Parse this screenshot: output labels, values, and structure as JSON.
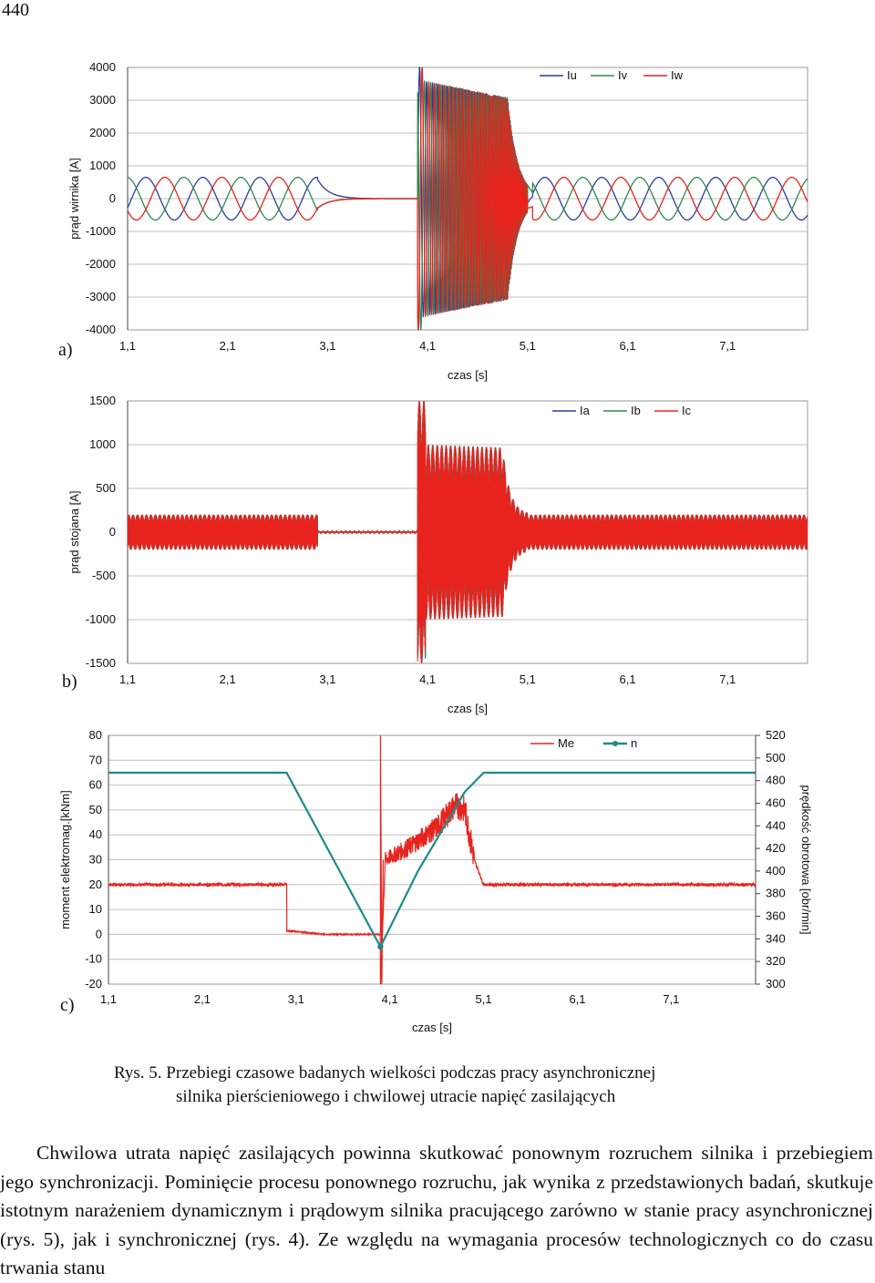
{
  "page_number": "440",
  "figure": {
    "caption_line1": "Rys. 5. Przebiegi czasowe badanych wielkości podczas pracy asynchronicznej",
    "caption_line2": "silnika pierścieniowego i chwilowej utracie napięć zasilających",
    "colors": {
      "blue": "#2b3f9e",
      "green": "#2f8a4f",
      "red": "#e8231e",
      "teal": "#1f8a8a",
      "grid": "#bfbfbf"
    }
  },
  "chart_data": [
    {
      "panel_label": "a)",
      "type": "line",
      "ylabel": "prąd wirnika [A]",
      "xlabel": "czas [s]",
      "xlim": [
        1.1,
        7.9
      ],
      "ylim": [
        -4000,
        4000
      ],
      "x_ticks": [
        "1,1",
        "2,1",
        "3,1",
        "4,1",
        "5,1",
        "6,1",
        "7,1"
      ],
      "y_ticks": [
        "4000",
        "3000",
        "2000",
        "1000",
        "0",
        "-1000",
        "-2000",
        "-3000",
        "-4000"
      ],
      "series": [
        {
          "name": "Iu",
          "color": "#2b3f9e",
          "phase_deg": 0
        },
        {
          "name": "Iv",
          "color": "#2f8a4f",
          "phase_deg": 120
        },
        {
          "name": "Iw",
          "color": "#e8231e",
          "phase_deg": 240
        }
      ],
      "segments": [
        {
          "t_start": 1.1,
          "t_end": 3.0,
          "description": "steady slip-frequency sinusoid",
          "amplitude": 650,
          "period_s": 0.57
        },
        {
          "t_start": 3.0,
          "t_end": 4.0,
          "description": "decay to zero after voltage loss",
          "amplitude_start": 650,
          "amplitude_end": 0
        },
        {
          "t_start": 4.0,
          "t_end": 5.1,
          "description": "reconnection transient, high frequency",
          "amplitude_peak": 4000,
          "amplitude_mid": 3500
        },
        {
          "t_start": 5.1,
          "t_end": 5.3,
          "description": "settling",
          "amplitude": 1000
        },
        {
          "t_start": 5.3,
          "t_end": 7.9,
          "description": "steady slip-frequency sinusoid",
          "amplitude": 650,
          "period_s": 0.57
        }
      ]
    },
    {
      "panel_label": "b)",
      "type": "line",
      "ylabel": "prąd stojana [A]",
      "xlabel": "czas [s]",
      "xlim": [
        1.1,
        7.9
      ],
      "ylim": [
        -1500,
        1500
      ],
      "x_ticks": [
        "1,1",
        "2,1",
        "3,1",
        "4,1",
        "5,1",
        "6,1",
        "7,1"
      ],
      "y_ticks": [
        "1500",
        "1000",
        "500",
        "0",
        "-500",
        "-1000",
        "-1500"
      ],
      "series": [
        {
          "name": "Ia",
          "color": "#2b3f9e"
        },
        {
          "name": "Ib",
          "color": "#2f8a4f"
        },
        {
          "name": "Ic",
          "color": "#e8231e"
        }
      ],
      "segments": [
        {
          "t_start": 1.1,
          "t_end": 3.0,
          "description": "50 Hz band",
          "amplitude": 200
        },
        {
          "t_start": 3.0,
          "t_end": 4.0,
          "description": "near zero",
          "amplitude": 5
        },
        {
          "t_start": 4.0,
          "t_end": 4.1,
          "description": "inrush spike",
          "amplitude": 1500
        },
        {
          "t_start": 4.1,
          "t_end": 4.85,
          "description": "high current band",
          "amplitude": 1000
        },
        {
          "t_start": 4.85,
          "t_end": 5.1,
          "description": "decay",
          "amplitude_start": 1000,
          "amplitude_end": 200
        },
        {
          "t_start": 5.1,
          "t_end": 7.9,
          "description": "50 Hz band",
          "amplitude": 200
        }
      ]
    },
    {
      "panel_label": "c)",
      "type": "line",
      "ylabel": "moment elektromag.[kNm]",
      "y2label": "prędkość obrotowa [obr/min]",
      "xlabel": "czas [s]",
      "xlim": [
        1.1,
        8.0
      ],
      "ylim": [
        -20,
        80
      ],
      "y2lim": [
        300,
        520
      ],
      "x_ticks": [
        "1,1",
        "2,1",
        "3,1",
        "4,1",
        "5,1",
        "6,1",
        "7,1"
      ],
      "y_ticks": [
        "80",
        "70",
        "60",
        "50",
        "40",
        "30",
        "20",
        "10",
        "0",
        "-10",
        "-20"
      ],
      "y2_ticks": [
        "520",
        "500",
        "480",
        "460",
        "440",
        "420",
        "400",
        "380",
        "360",
        "340",
        "320",
        "300"
      ],
      "series": [
        {
          "name": "Me",
          "color": "#e8231e",
          "axis": "left",
          "points": [
            [
              1.1,
              20
            ],
            [
              3.0,
              20
            ],
            [
              3.0,
              1.5
            ],
            [
              3.4,
              0
            ],
            [
              4.0,
              0
            ],
            [
              4.0,
              80
            ],
            [
              4.0,
              -20
            ],
            [
              4.05,
              30
            ],
            [
              4.3,
              35
            ],
            [
              4.6,
              43
            ],
            [
              4.8,
              52
            ],
            [
              4.9,
              50
            ],
            [
              5.0,
              30
            ],
            [
              5.1,
              20
            ],
            [
              8.0,
              20
            ]
          ]
        },
        {
          "name": "n",
          "color": "#1f8a8a",
          "axis": "right",
          "points": [
            [
              1.1,
              487
            ],
            [
              3.0,
              487
            ],
            [
              4.0,
              333
            ],
            [
              4.4,
              400
            ],
            [
              4.9,
              470
            ],
            [
              5.1,
              487
            ],
            [
              8.0,
              487
            ]
          ]
        }
      ]
    }
  ],
  "body": {
    "paragraph": "Chwilowa utrata napięć zasilających powinna skutkować ponownym rozruchem silnika i przebiegiem jego synchronizacji. Pominięcie procesu ponownego rozruchu, jak wynika z przedstawionych badań, skutkuje istotnym narażeniem dynamicznym i prądowym silnika pracującego zarówno w stanie pracy asynchronicznej (rys. 5), jak i synchronicznej (rys. 4). Ze względu na wymagania procesów technologicznych co do czasu trwania stanu"
  }
}
